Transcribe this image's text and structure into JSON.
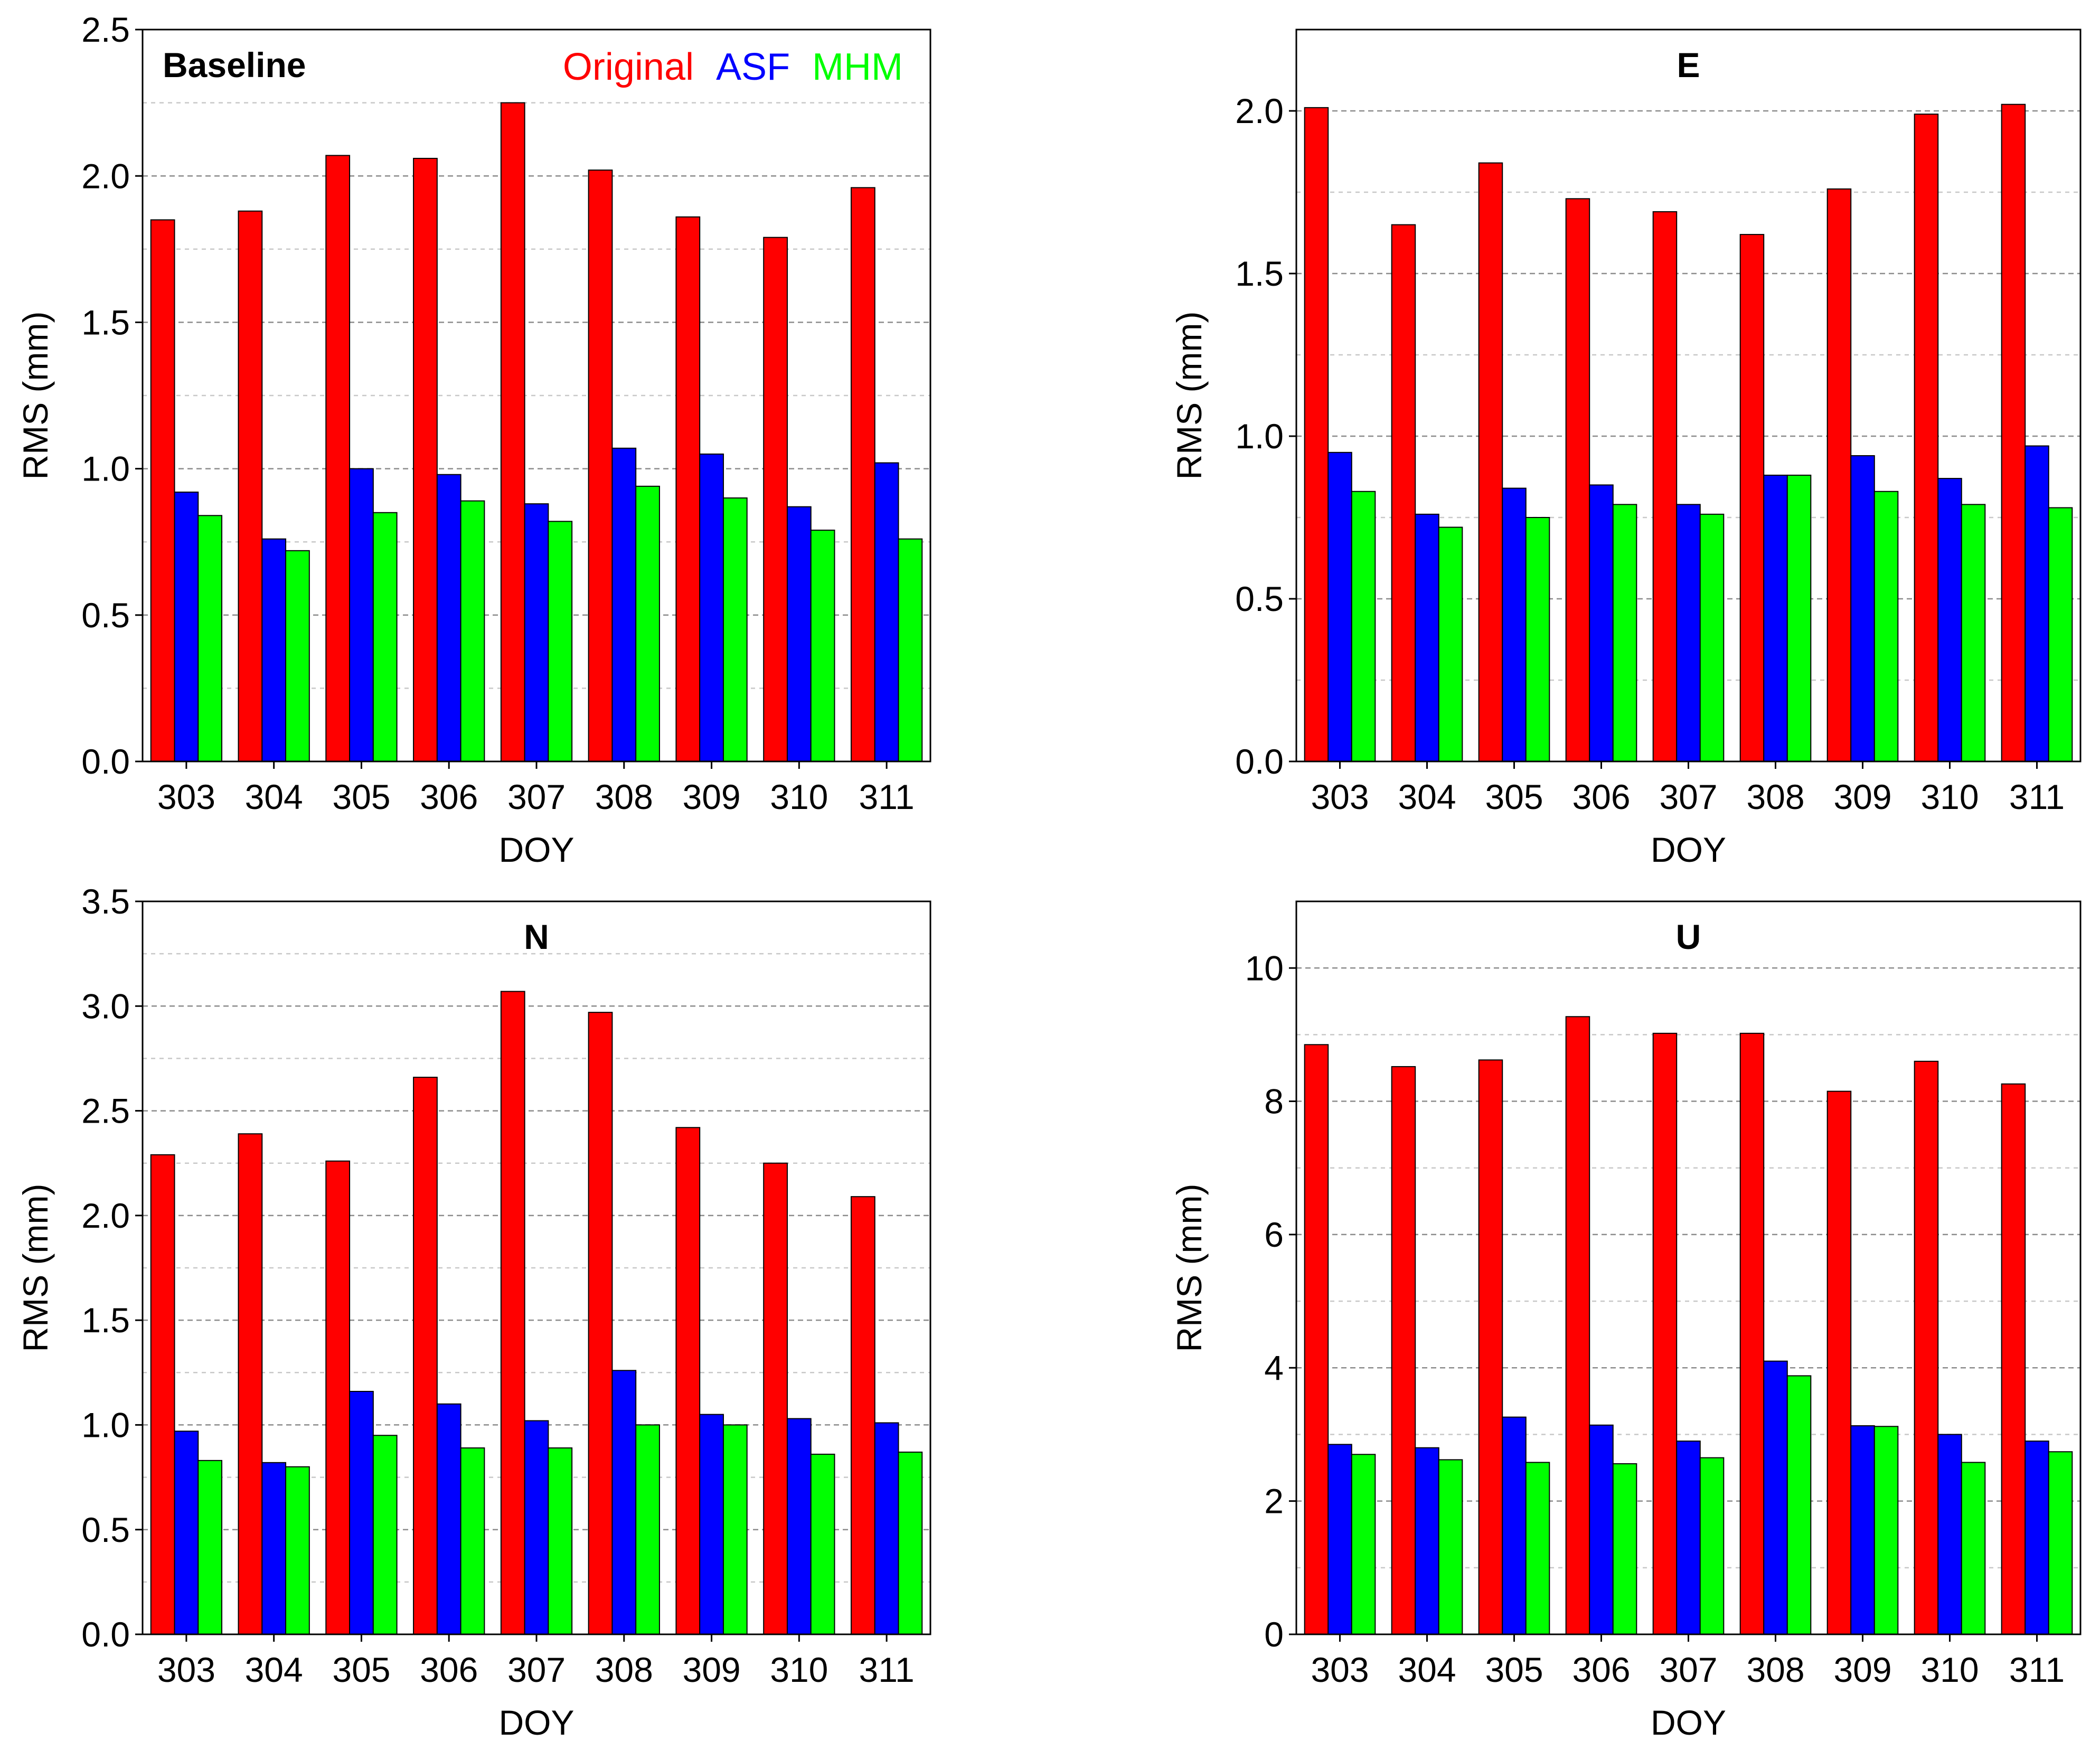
{
  "legend": [
    {
      "label": "Original",
      "color": "#ff0000"
    },
    {
      "label": "ASF",
      "color": "#0000ff"
    },
    {
      "label": "MHM",
      "color": "#00ff00"
    }
  ],
  "chart_data": [
    {
      "type": "bar",
      "title": "Baseline",
      "xlabel": "DOY",
      "ylabel": "RMS (mm)",
      "categories": [
        "303",
        "304",
        "305",
        "306",
        "307",
        "308",
        "309",
        "310",
        "311"
      ],
      "ylim": [
        0,
        2.5
      ],
      "yticks": [
        "0.0",
        "0.5",
        "1.0",
        "1.5",
        "2.0",
        "2.5"
      ],
      "grid": true,
      "legend_position": "top-right",
      "series": [
        {
          "name": "Original",
          "color": "#ff0000",
          "values": [
            1.85,
            1.88,
            2.07,
            2.06,
            2.25,
            2.02,
            1.86,
            1.79,
            1.96
          ]
        },
        {
          "name": "ASF",
          "color": "#0000ff",
          "values": [
            0.92,
            0.76,
            1.0,
            0.98,
            0.88,
            1.07,
            1.05,
            0.87,
            1.02
          ]
        },
        {
          "name": "MHM",
          "color": "#00ff00",
          "values": [
            0.84,
            0.72,
            0.85,
            0.89,
            0.82,
            0.94,
            0.9,
            0.79,
            0.76
          ]
        }
      ]
    },
    {
      "type": "bar",
      "title": "E",
      "xlabel": "DOY",
      "ylabel": "RMS (mm)",
      "categories": [
        "303",
        "304",
        "305",
        "306",
        "307",
        "308",
        "309",
        "310",
        "311"
      ],
      "ylim": [
        0,
        2.25
      ],
      "yticks": [
        "0.0",
        "0.5",
        "1.0",
        "1.5",
        "2.0"
      ],
      "grid": true,
      "series": [
        {
          "name": "Original",
          "color": "#ff0000",
          "values": [
            2.01,
            1.65,
            1.84,
            1.73,
            1.69,
            1.62,
            1.76,
            1.99,
            2.02
          ]
        },
        {
          "name": "ASF",
          "color": "#0000ff",
          "values": [
            0.95,
            0.76,
            0.84,
            0.85,
            0.79,
            0.88,
            0.94,
            0.87,
            0.97
          ]
        },
        {
          "name": "MHM",
          "color": "#00ff00",
          "values": [
            0.83,
            0.72,
            0.75,
            0.79,
            0.76,
            0.88,
            0.83,
            0.79,
            0.78
          ]
        }
      ]
    },
    {
      "type": "bar",
      "title": "N",
      "xlabel": "DOY",
      "ylabel": "RMS (mm)",
      "categories": [
        "303",
        "304",
        "305",
        "306",
        "307",
        "308",
        "309",
        "310",
        "311"
      ],
      "ylim": [
        0,
        3.5
      ],
      "yticks": [
        "0.0",
        "0.5",
        "1.0",
        "1.5",
        "2.0",
        "2.5",
        "3.0",
        "3.5"
      ],
      "grid": true,
      "series": [
        {
          "name": "Original",
          "color": "#ff0000",
          "values": [
            2.29,
            2.39,
            2.26,
            2.66,
            3.07,
            2.97,
            2.42,
            2.25,
            2.09
          ]
        },
        {
          "name": "ASF",
          "color": "#0000ff",
          "values": [
            0.97,
            0.82,
            1.16,
            1.1,
            1.02,
            1.26,
            1.05,
            1.03,
            1.01
          ]
        },
        {
          "name": "MHM",
          "color": "#00ff00",
          "values": [
            0.83,
            0.8,
            0.95,
            0.89,
            0.89,
            1.0,
            1.0,
            0.86,
            0.87
          ]
        }
      ]
    },
    {
      "type": "bar",
      "title": "U",
      "xlabel": "DOY",
      "ylabel": "RMS (mm)",
      "categories": [
        "303",
        "304",
        "305",
        "306",
        "307",
        "308",
        "309",
        "310",
        "311"
      ],
      "ylim": [
        0,
        11
      ],
      "yticks": [
        "0",
        "2",
        "4",
        "6",
        "8",
        "10"
      ],
      "grid": true,
      "series": [
        {
          "name": "Original",
          "color": "#ff0000",
          "values": [
            8.85,
            8.52,
            8.62,
            9.27,
            9.02,
            9.02,
            8.15,
            8.6,
            8.26
          ]
        },
        {
          "name": "ASF",
          "color": "#0000ff",
          "values": [
            2.85,
            2.8,
            3.26,
            3.14,
            2.9,
            4.1,
            3.13,
            3.0,
            2.9
          ]
        },
        {
          "name": "MHM",
          "color": "#00ff00",
          "values": [
            2.7,
            2.62,
            2.58,
            2.56,
            2.65,
            3.88,
            3.12,
            2.58,
            2.74
          ]
        }
      ]
    }
  ]
}
